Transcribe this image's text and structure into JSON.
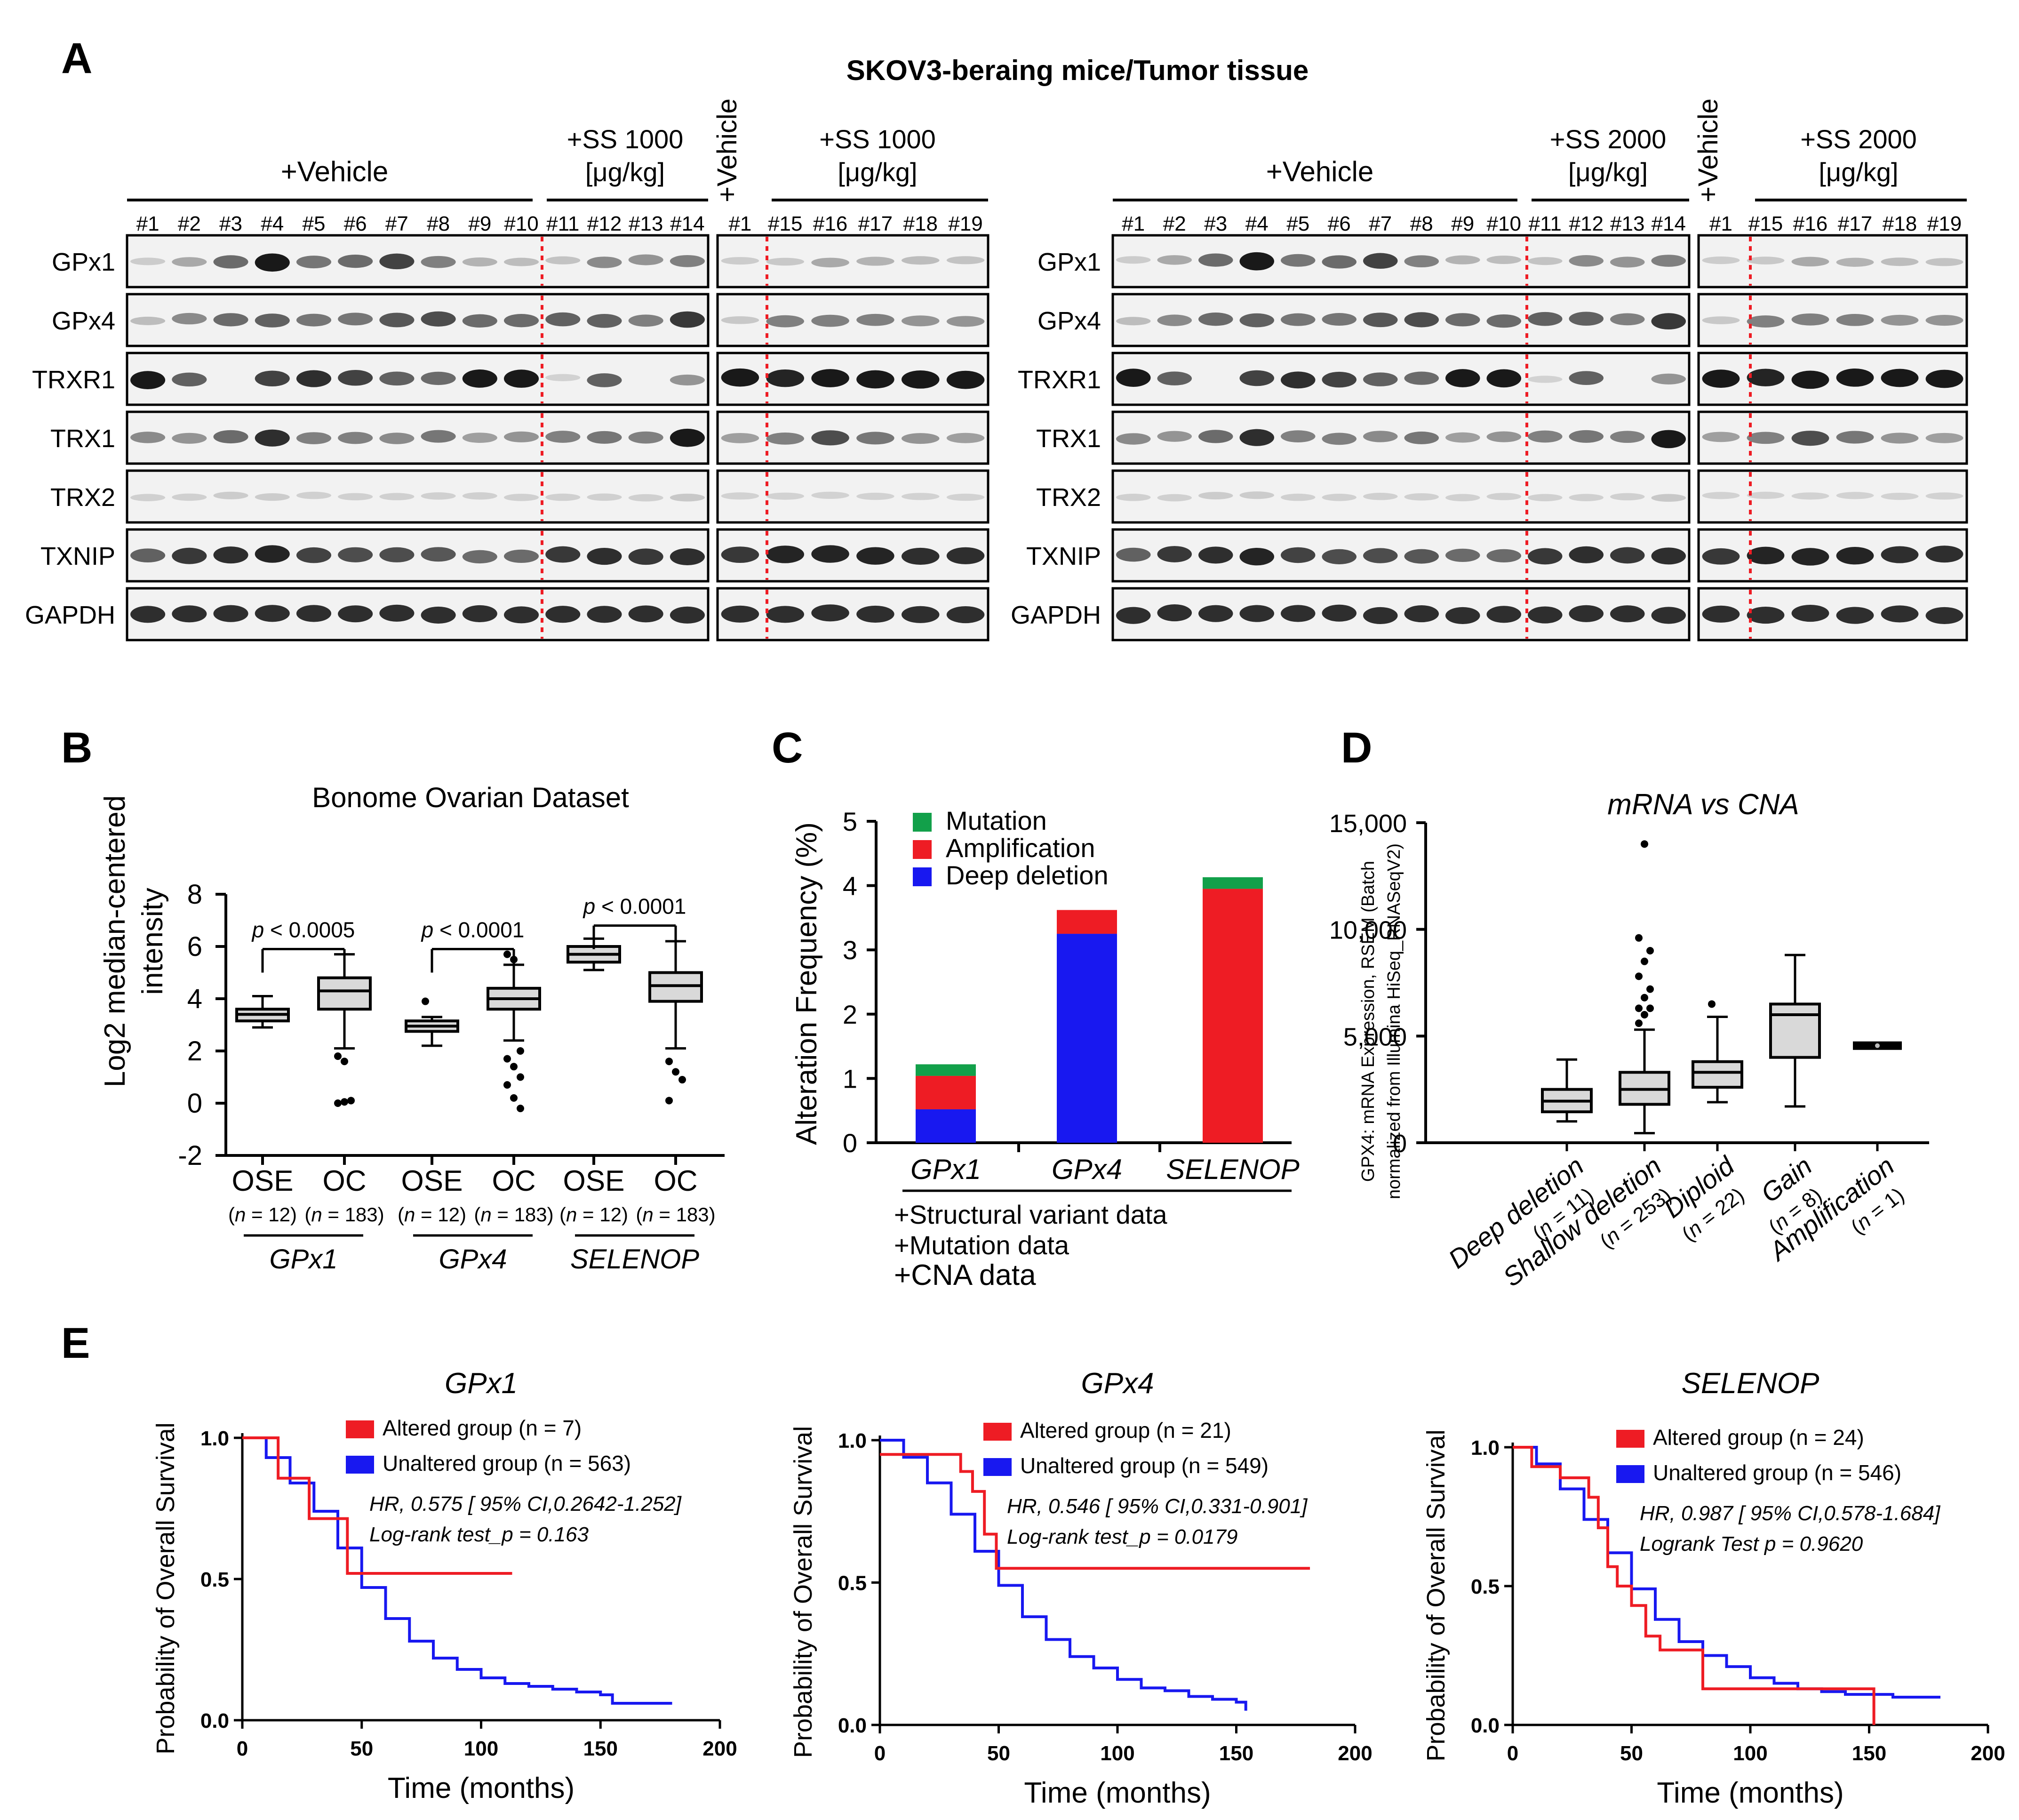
{
  "figure": {
    "panel_letters": [
      "A",
      "B",
      "C",
      "D",
      "E"
    ],
    "colors": {
      "red": "#ee1c24",
      "blue": "#1818f0",
      "green": "#12a04a",
      "box_fill": "#d9d9d9",
      "marker": "#e62020"
    }
  },
  "panel_a": {
    "title": "SKOV3-beraing mice/Tumor tissue",
    "proteins": [
      "GPx1",
      "GPx4",
      "TRXR1",
      "TRX1",
      "TRX2",
      "TXNIP",
      "GAPDH"
    ],
    "left": {
      "vehicle_label": "+Vehicle",
      "treat_label_line1": "+SS 1000",
      "treat_label_line2": "[μg/kg]",
      "lanes": [
        "#1",
        "#2",
        "#3",
        "#4",
        "#5",
        "#6",
        "#7",
        "#8",
        "#9",
        "#10",
        "#11",
        "#12",
        "#13",
        "#14"
      ],
      "small_vehicle_label": "+Vehicle",
      "small_treat_line1": "+SS 1000",
      "small_treat_line2": "[μg/kg]",
      "small_lanes": [
        "#1",
        "#15",
        "#16",
        "#17",
        "#18",
        "#19"
      ]
    },
    "right": {
      "vehicle_label": "+Vehicle",
      "treat_label_line1": "+SS 2000",
      "treat_label_line2": "[μg/kg]",
      "lanes": [
        "#1",
        "#2",
        "#3",
        "#4",
        "#5",
        "#6",
        "#7",
        "#8",
        "#9",
        "#10",
        "#11",
        "#12",
        "#13",
        "#14"
      ],
      "small_vehicle_label": "+Vehicle",
      "small_treat_line1": "+SS 2000",
      "small_treat_line2": "[μg/kg]",
      "small_lanes": [
        "#1",
        "#15",
        "#16",
        "#17",
        "#18",
        "#19"
      ]
    }
  },
  "chart_data": [
    {
      "id": "B",
      "type": "box",
      "title": "Bonome Ovarian Dataset",
      "ylabel_line1": "Log2 median-centered",
      "ylabel_line2": "intensity",
      "ylim": [
        -2,
        8
      ],
      "yticks": [
        -2,
        0,
        2,
        4,
        6,
        8
      ],
      "categories": [
        "OSE",
        "OC",
        "OSE",
        "OC",
        "OSE",
        "OC"
      ],
      "n_labels": [
        "(n = 12)",
        "(n = 183)",
        "(n = 12)",
        "(n = 183)",
        "(n = 12)",
        "(n = 183)"
      ],
      "genes": [
        "GPx1",
        "GPx4",
        "SELENOP"
      ],
      "boxes": [
        {
          "min": 2.9,
          "q1": 3.15,
          "median": 3.4,
          "q3": 3.6,
          "max": 4.1,
          "outliers": []
        },
        {
          "min": 2.1,
          "q1": 3.6,
          "median": 4.3,
          "q3": 4.8,
          "max": 5.7,
          "outliers": [
            1.8,
            1.6,
            0.1,
            0.0,
            0.05
          ]
        },
        {
          "min": 2.2,
          "q1": 2.75,
          "median": 2.95,
          "q3": 3.15,
          "max": 3.3,
          "outliers": [
            3.9
          ]
        },
        {
          "min": 2.4,
          "q1": 3.6,
          "median": 4.0,
          "q3": 4.4,
          "max": 5.3,
          "outliers": [
            5.7,
            5.5,
            2.0,
            1.7,
            1.4,
            1.0,
            0.7,
            0.2,
            -0.2
          ]
        },
        {
          "min": 5.1,
          "q1": 5.4,
          "median": 5.7,
          "q3": 6.0,
          "max": 6.3,
          "outliers": []
        },
        {
          "min": 2.1,
          "q1": 3.9,
          "median": 4.5,
          "q3": 5.0,
          "max": 6.2,
          "outliers": [
            1.6,
            1.2,
            0.9,
            0.1
          ]
        }
      ],
      "pvalues": [
        "p < 0.0005",
        "p < 0.0001",
        "p < 0.0001"
      ]
    },
    {
      "id": "C",
      "type": "bar",
      "stacked": true,
      "ylabel": "Alteration Frequency (%)",
      "ylim": [
        0,
        5
      ],
      "yticks": [
        0,
        1,
        2,
        3,
        4,
        5
      ],
      "categories": [
        "GPx1",
        "GPx4",
        "SELENOP"
      ],
      "series": [
        {
          "name": "Deep deletion",
          "values": [
            0.52,
            3.25,
            0.0
          ]
        },
        {
          "name": "Amplification",
          "values": [
            0.52,
            0.37,
            3.95
          ]
        },
        {
          "name": "Mutation",
          "values": [
            0.18,
            0.0,
            0.18
          ]
        }
      ],
      "footer": [
        "+Structural variant data",
        "+Mutation data",
        "+CNA data"
      ]
    },
    {
      "id": "D",
      "type": "box",
      "title": "mRNA vs CNA",
      "ylabel_line1": "GPX4: mRNA Expression, RSEM  (Batch",
      "ylabel_line2": "normalized from Illumina HiSeq_RNASeqV2)",
      "ylim": [
        0,
        15000
      ],
      "yticks": [
        0,
        5000,
        10000,
        15000
      ],
      "ytick_labels": [
        "0",
        "5,000",
        "10,000",
        "15,000"
      ],
      "categories": [
        "Deep deletion",
        "Shallow deletion",
        "Diploid",
        "Gain",
        "Amplification"
      ],
      "n_labels": [
        "(n = 11)",
        "(n = 253)",
        "(n = 22)",
        "(n = 8)",
        "(n = 1)"
      ],
      "boxes": [
        {
          "min": 1000,
          "q1": 1450,
          "median": 1950,
          "q3": 2500,
          "max": 3900,
          "outliers": []
        },
        {
          "min": 450,
          "q1": 1800,
          "median": 2500,
          "q3": 3300,
          "max": 5300,
          "outliers": [
            5600,
            6000,
            6300,
            6300,
            6800,
            7200,
            7800,
            8500,
            9000,
            9600,
            14000
          ]
        },
        {
          "min": 1900,
          "q1": 2600,
          "median": 3300,
          "q3": 3800,
          "max": 5900,
          "outliers": [
            6500
          ]
        },
        {
          "min": 1700,
          "q1": 4000,
          "median": 6000,
          "q3": 6500,
          "max": 8800,
          "outliers": []
        },
        {
          "min": 4550,
          "q1": 4550,
          "median": 4550,
          "q3": 4550,
          "max": 4550,
          "outliers": []
        }
      ]
    },
    {
      "id": "E1",
      "type": "line",
      "title": "GPx1",
      "xlabel": "Time (months)",
      "ylabel": "Probability of Overall Survival",
      "xlim": [
        0,
        200
      ],
      "ylim": [
        0,
        1
      ],
      "xticks": [
        0,
        50,
        100,
        150,
        200
      ],
      "yticks": [
        0.0,
        0.5,
        1.0
      ],
      "series": [
        {
          "name": "Unaltered group",
          "n": "n = 563",
          "x": [
            0,
            10,
            20,
            30,
            40,
            50,
            60,
            70,
            80,
            90,
            100,
            110,
            120,
            130,
            140,
            150,
            155,
            180
          ],
          "y": [
            1.0,
            0.93,
            0.84,
            0.74,
            0.61,
            0.47,
            0.36,
            0.28,
            0.22,
            0.18,
            0.15,
            0.13,
            0.12,
            0.11,
            0.1,
            0.09,
            0.06,
            0.06
          ]
        },
        {
          "name": "Altered group",
          "n": "n = 7",
          "x": [
            0,
            15,
            15,
            28,
            28,
            44,
            44,
            113
          ],
          "y": [
            1.0,
            1.0,
            0.857,
            0.857,
            0.714,
            0.714,
            0.52,
            0.52
          ]
        }
      ],
      "stats_line1": "HR, 0.575 [ 95% CI,0.2642-1.252]",
      "stats_line2": "Log-rank test_p = 0.163"
    },
    {
      "id": "E2",
      "type": "line",
      "title": "GPx4",
      "xlabel": "Time (months)",
      "ylabel": "Probability of Overall Survival",
      "xlim": [
        0,
        200
      ],
      "ylim": [
        0,
        1
      ],
      "xticks": [
        0,
        50,
        100,
        150,
        200
      ],
      "yticks": [
        0.0,
        0.5,
        1.0
      ],
      "series": [
        {
          "name": "Unaltered group",
          "n": "n = 549",
          "x": [
            0,
            10,
            20,
            30,
            40,
            50,
            60,
            70,
            80,
            90,
            100,
            110,
            120,
            130,
            140,
            150,
            154
          ],
          "y": [
            1.0,
            0.94,
            0.85,
            0.74,
            0.61,
            0.49,
            0.38,
            0.3,
            0.24,
            0.2,
            0.16,
            0.13,
            0.12,
            0.1,
            0.09,
            0.08,
            0.05
          ]
        },
        {
          "name": "Altered group",
          "n": "n = 21",
          "x": [
            0,
            34,
            34,
            39,
            39,
            44,
            44,
            49,
            49,
            181
          ],
          "y": [
            0.95,
            0.95,
            0.89,
            0.89,
            0.82,
            0.82,
            0.67,
            0.67,
            0.55,
            0.55
          ]
        }
      ],
      "stats_line1": "HR, 0.546 [ 95% CI,0.331-0.901]",
      "stats_line2": "Log-rank test_p = 0.0179"
    },
    {
      "id": "E3",
      "type": "line",
      "title": "SELENOP",
      "xlabel": "Time (months)",
      "ylabel": "Probability of Overall Survival",
      "xlim": [
        0,
        200
      ],
      "ylim": [
        0,
        1
      ],
      "xticks": [
        0,
        50,
        100,
        150,
        200
      ],
      "yticks": [
        0.0,
        0.5,
        1.0
      ],
      "series": [
        {
          "name": "Unaltered group",
          "n": "n = 546",
          "x": [
            0,
            10,
            20,
            30,
            40,
            50,
            60,
            70,
            80,
            90,
            100,
            110,
            120,
            130,
            140,
            150,
            160,
            180
          ],
          "y": [
            1.0,
            0.94,
            0.85,
            0.74,
            0.62,
            0.49,
            0.38,
            0.3,
            0.25,
            0.21,
            0.17,
            0.15,
            0.13,
            0.12,
            0.11,
            0.11,
            0.1,
            0.1
          ]
        },
        {
          "name": "Altered group",
          "n": "n = 24",
          "x": [
            0,
            8,
            8,
            20,
            20,
            32,
            32,
            36,
            36,
            40,
            40,
            44,
            44,
            50,
            50,
            56,
            56,
            62,
            62,
            80,
            80,
            152,
            152
          ],
          "y": [
            1.0,
            1.0,
            0.93,
            0.93,
            0.89,
            0.89,
            0.82,
            0.82,
            0.71,
            0.71,
            0.57,
            0.57,
            0.5,
            0.5,
            0.43,
            0.43,
            0.32,
            0.32,
            0.27,
            0.27,
            0.13,
            0.13,
            0.0
          ]
        }
      ],
      "stats_line1": "HR, 0.987 [ 95% CI,0.578-1.684]",
      "stats_line2": "Logrank Test p = 0.9620"
    }
  ]
}
